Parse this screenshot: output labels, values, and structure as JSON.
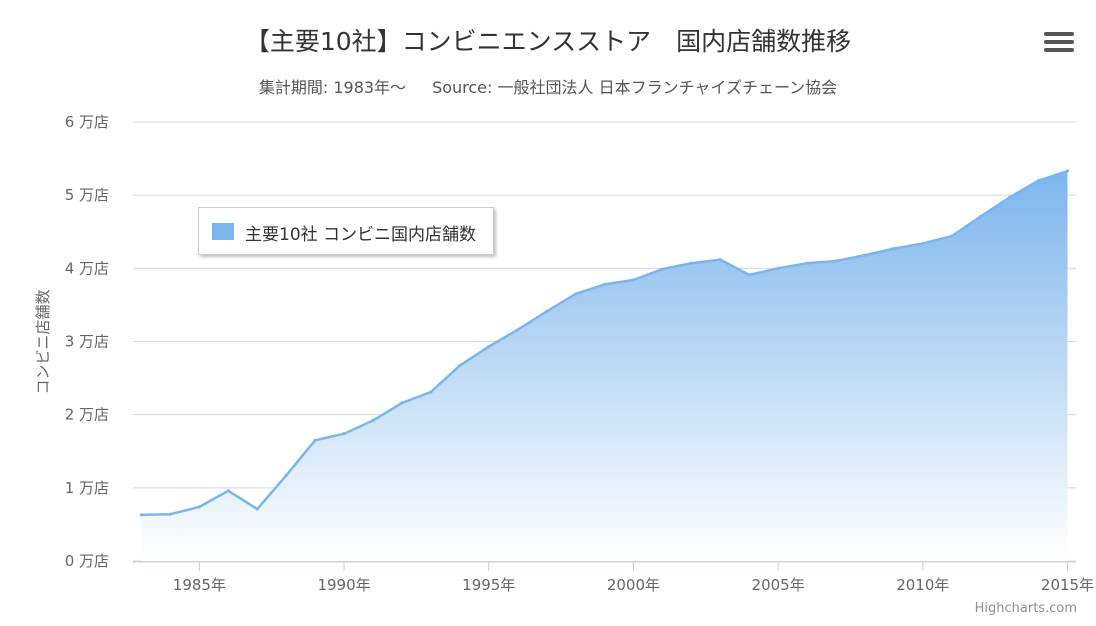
{
  "chart_data": {
    "type": "area",
    "title": "【主要10社】コンビニエンスストア　国内店舗数推移",
    "subtitle": "集計期間: 1983年～",
    "source": "Source: 一般社団法人 日本フランチャイズチェーン協会",
    "ylabel": "コンビニ店舗数",
    "xlabel": "",
    "ylim": [
      0,
      6
    ],
    "yticks": [
      0,
      1,
      2,
      3,
      4,
      5,
      6
    ],
    "ytick_suffix": " 万店",
    "xlim": [
      1983,
      2015
    ],
    "xticks": [
      1985,
      1990,
      1995,
      2000,
      2005,
      2010,
      2015
    ],
    "xtick_suffix": "年",
    "grid": true,
    "legend_position": "top-left",
    "series": [
      {
        "name": "主要10社 コンビニ国内店舗数",
        "color": "#7cb5ec",
        "x": [
          1983,
          1984,
          1985,
          1986,
          1987,
          1988,
          1989,
          1990,
          1991,
          1992,
          1993,
          1994,
          1995,
          1996,
          1997,
          1998,
          1999,
          2000,
          2001,
          2002,
          2003,
          2004,
          2005,
          2006,
          2007,
          2008,
          2009,
          2010,
          2011,
          2012,
          2013,
          2014,
          2015
        ],
        "values": [
          0.63,
          0.64,
          0.74,
          0.96,
          0.71,
          1.17,
          1.65,
          1.74,
          1.92,
          2.16,
          2.31,
          2.67,
          2.93,
          3.16,
          3.41,
          3.65,
          3.78,
          3.84,
          3.99,
          4.07,
          4.12,
          3.91,
          4.0,
          4.07,
          4.1,
          4.18,
          4.27,
          4.34,
          4.44,
          4.71,
          4.97,
          5.2,
          5.33
        ]
      }
    ]
  },
  "ui": {
    "credit": "Highcharts.com",
    "menu_icon": "hamburger-icon"
  }
}
